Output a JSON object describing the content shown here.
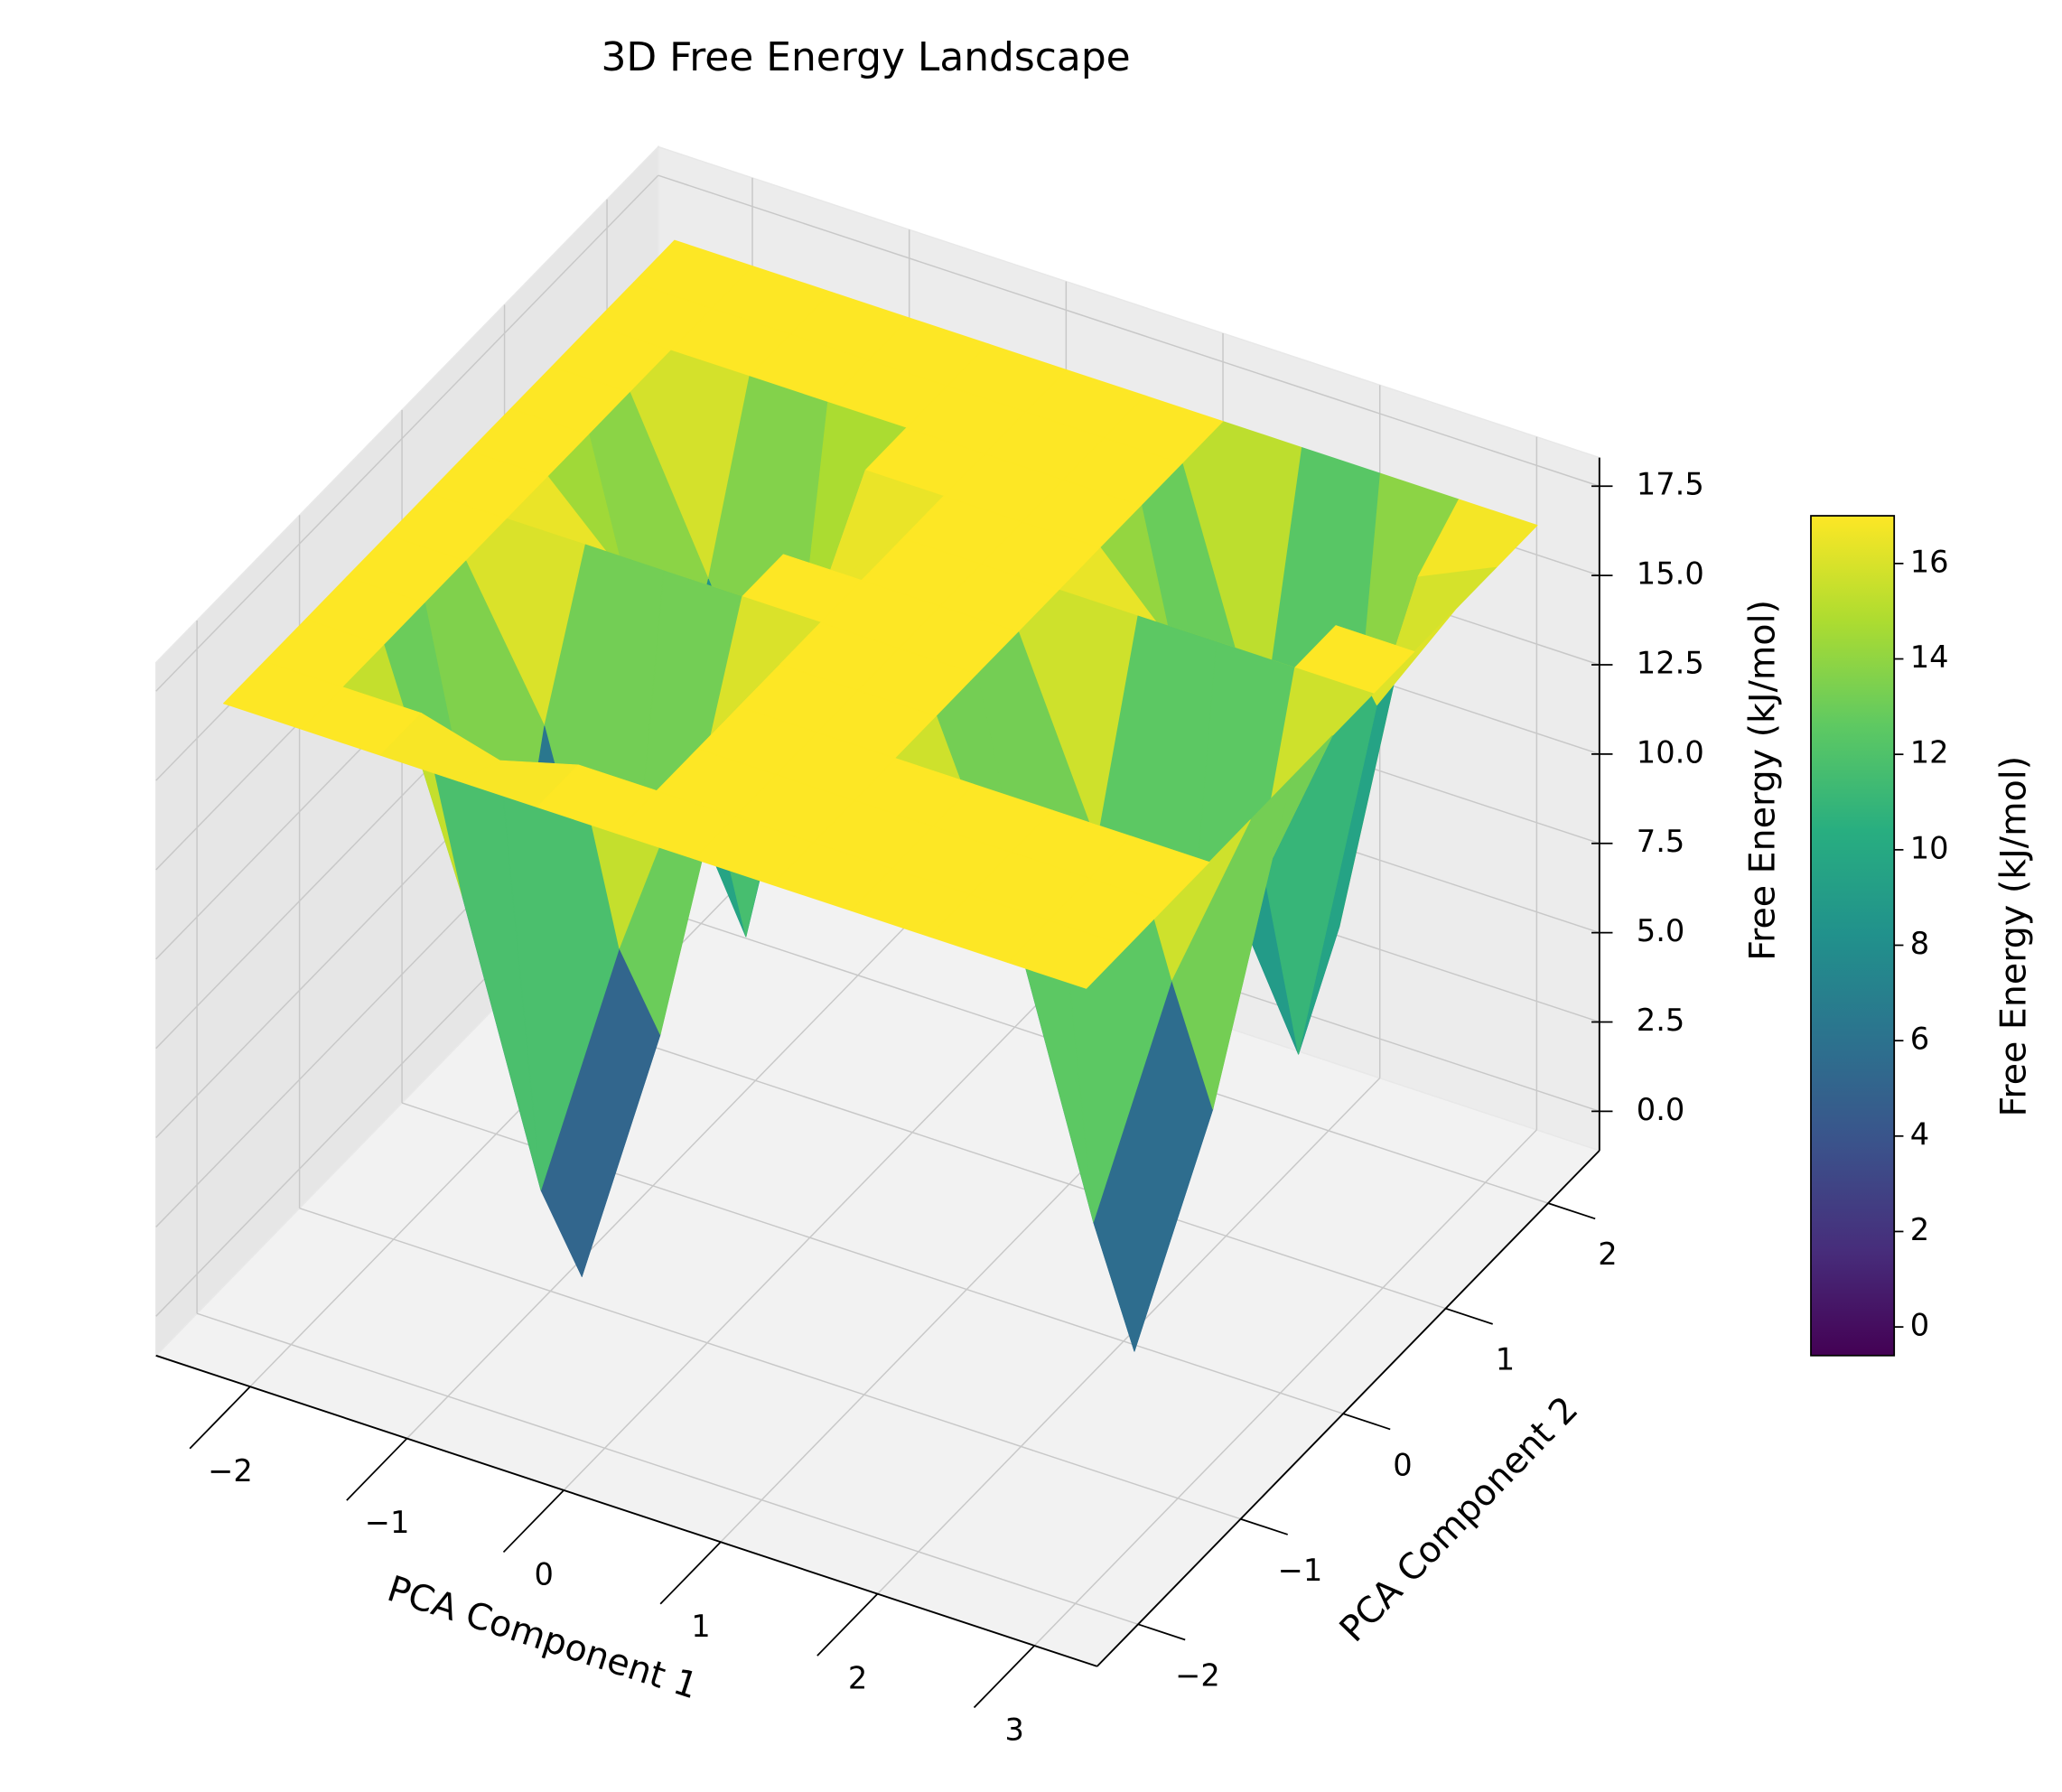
{
  "chart_data": {
    "type": "surface",
    "title": "3D Free Energy Landscape",
    "xlabel": "PCA Component 1",
    "ylabel": "PCA Component 2",
    "zlabel": "Free Energy (kJ/mol)",
    "x": [
      -2.3,
      -1.8,
      -1.3,
      -0.8,
      -0.3,
      0.2,
      0.7,
      1.2,
      1.7,
      2.2,
      2.7,
      3.2
    ],
    "y": [
      -2.2,
      -1.8,
      -1.4,
      -1.0,
      -0.6,
      -0.2,
      0.2,
      0.6,
      1.0,
      1.4,
      1.8,
      2.2
    ],
    "z": [
      [
        17,
        17,
        17,
        17,
        17,
        17,
        17,
        17,
        17,
        17,
        17,
        17
      ],
      [
        17,
        17,
        17,
        16.4,
        17,
        17,
        17,
        17,
        17,
        17,
        17,
        17
      ],
      [
        17,
        17,
        10.7,
        3.2,
        10.7,
        17,
        17,
        17,
        17,
        17,
        17,
        17
      ],
      [
        17,
        17,
        7.1,
        -0.4,
        7.1,
        17,
        17,
        17,
        17,
        17,
        17,
        17
      ],
      [
        17,
        17,
        13.1,
        5.6,
        13.1,
        17,
        17,
        17,
        11.8,
        4.3,
        11.8,
        17
      ],
      [
        17,
        17,
        17,
        17,
        17,
        17,
        17,
        17,
        7.0,
        -0.5,
        7.0,
        17
      ],
      [
        17,
        17,
        14.9,
        10.4,
        17,
        17,
        17,
        17,
        11.8,
        4.3,
        11.8,
        17
      ],
      [
        17,
        17,
        8.9,
        4.4,
        14.9,
        17,
        17,
        17,
        17,
        17,
        17,
        17
      ],
      [
        17,
        17,
        12.5,
        8.0,
        17,
        17,
        17,
        17,
        14.8,
        10.3,
        17,
        17
      ],
      [
        17,
        17,
        17,
        17,
        17,
        17,
        17,
        17,
        7.6,
        3.1,
        13.6,
        17
      ],
      [
        17,
        17,
        17,
        17,
        17,
        17,
        17,
        17,
        10.0,
        5.5,
        16.0,
        17
      ],
      [
        17,
        17,
        17,
        17,
        17,
        17,
        17,
        17,
        17,
        17,
        17,
        17
      ]
    ],
    "xlim": [
      -2.6,
      3.4
    ],
    "ylim": [
      -2.4,
      2.5
    ],
    "zlim": [
      -1.1,
      18.3
    ],
    "xticks": [
      {
        "value": -2,
        "label": "−2"
      },
      {
        "value": -1,
        "label": "−1"
      },
      0,
      1,
      2,
      3
    ],
    "yticks": [
      {
        "value": -2,
        "label": "−2"
      },
      {
        "value": -1,
        "label": "−1"
      },
      0,
      1,
      2
    ],
    "zticks": [
      {
        "value": 0,
        "label": "0.0"
      },
      2.5,
      {
        "value": 5,
        "label": "5.0"
      },
      7.5,
      {
        "value": 10,
        "label": "10.0"
      },
      12.5,
      {
        "value": 15,
        "label": "15.0"
      },
      17.5
    ],
    "colormap": "viridis",
    "colorbar": {
      "label": "Free Energy (kJ/mol)",
      "lim": [
        -0.6,
        17
      ],
      "ticks": [
        0,
        2,
        4,
        6,
        8,
        10,
        12,
        14,
        16
      ]
    },
    "grid": true
  }
}
